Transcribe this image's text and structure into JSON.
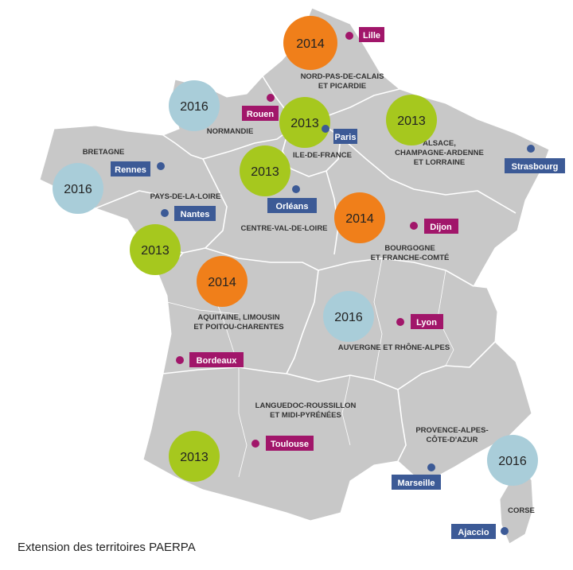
{
  "caption": "Extension des territoires PAERPA",
  "colors": {
    "land": "#c8c8c8",
    "border": "#ffffff",
    "year_2013": "#a6c81e",
    "year_2014": "#f07f1a",
    "year_2016": "#a9cdd9",
    "city_blue": "#3c5a96",
    "city_magenta": "#a1166a"
  },
  "regions": [
    {
      "lines": [
        "NORD-PAS-DE-CALAIS",
        "ET PICARDIE"
      ]
    },
    {
      "lines": [
        "NORMANDIE"
      ]
    },
    {
      "lines": [
        "BRETAGNE"
      ]
    },
    {
      "lines": [
        "ILE-DE-FRANCE"
      ]
    },
    {
      "lines": [
        "ALSACE,",
        "CHAMPAGNE-ARDENNE",
        "ET LORRAINE"
      ]
    },
    {
      "lines": [
        "PAYS-DE-LA-LOIRE"
      ]
    },
    {
      "lines": [
        "CENTRE-VAL-DE-LOIRE"
      ]
    },
    {
      "lines": [
        "BOURGOGNE",
        "ET FRANCHE-COMTÉ"
      ]
    },
    {
      "lines": [
        "AQUITAINE, LIMOUSIN",
        "ET POITOU-CHARENTES"
      ]
    },
    {
      "lines": [
        "AUVERGNE ET RHÔNE-ALPES"
      ]
    },
    {
      "lines": [
        "LANGUEDOC-ROUSSILLON",
        "ET MIDI-PYRÉNÉES"
      ]
    },
    {
      "lines": [
        "PROVENCE-ALPES-",
        "CÔTE-D'AZUR"
      ]
    },
    {
      "lines": [
        "CORSE"
      ]
    }
  ],
  "years": [
    "2014",
    "2016",
    "2013",
    "2013",
    "2016",
    "2013",
    "2014",
    "2013",
    "2014",
    "2016",
    "2013",
    "2016"
  ],
  "cities": [
    {
      "name": "Lille",
      "color": "magenta"
    },
    {
      "name": "Rouen",
      "color": "magenta"
    },
    {
      "name": "Paris",
      "color": "blue"
    },
    {
      "name": "Rennes",
      "color": "blue"
    },
    {
      "name": "Strasbourg",
      "color": "blue"
    },
    {
      "name": "Orléans",
      "color": "blue"
    },
    {
      "name": "Nantes",
      "color": "blue"
    },
    {
      "name": "Dijon",
      "color": "magenta"
    },
    {
      "name": "Lyon",
      "color": "magenta"
    },
    {
      "name": "Bordeaux",
      "color": "magenta"
    },
    {
      "name": "Toulouse",
      "color": "magenta"
    },
    {
      "name": "Marseille",
      "color": "blue"
    },
    {
      "name": "Ajaccio",
      "color": "blue"
    }
  ]
}
